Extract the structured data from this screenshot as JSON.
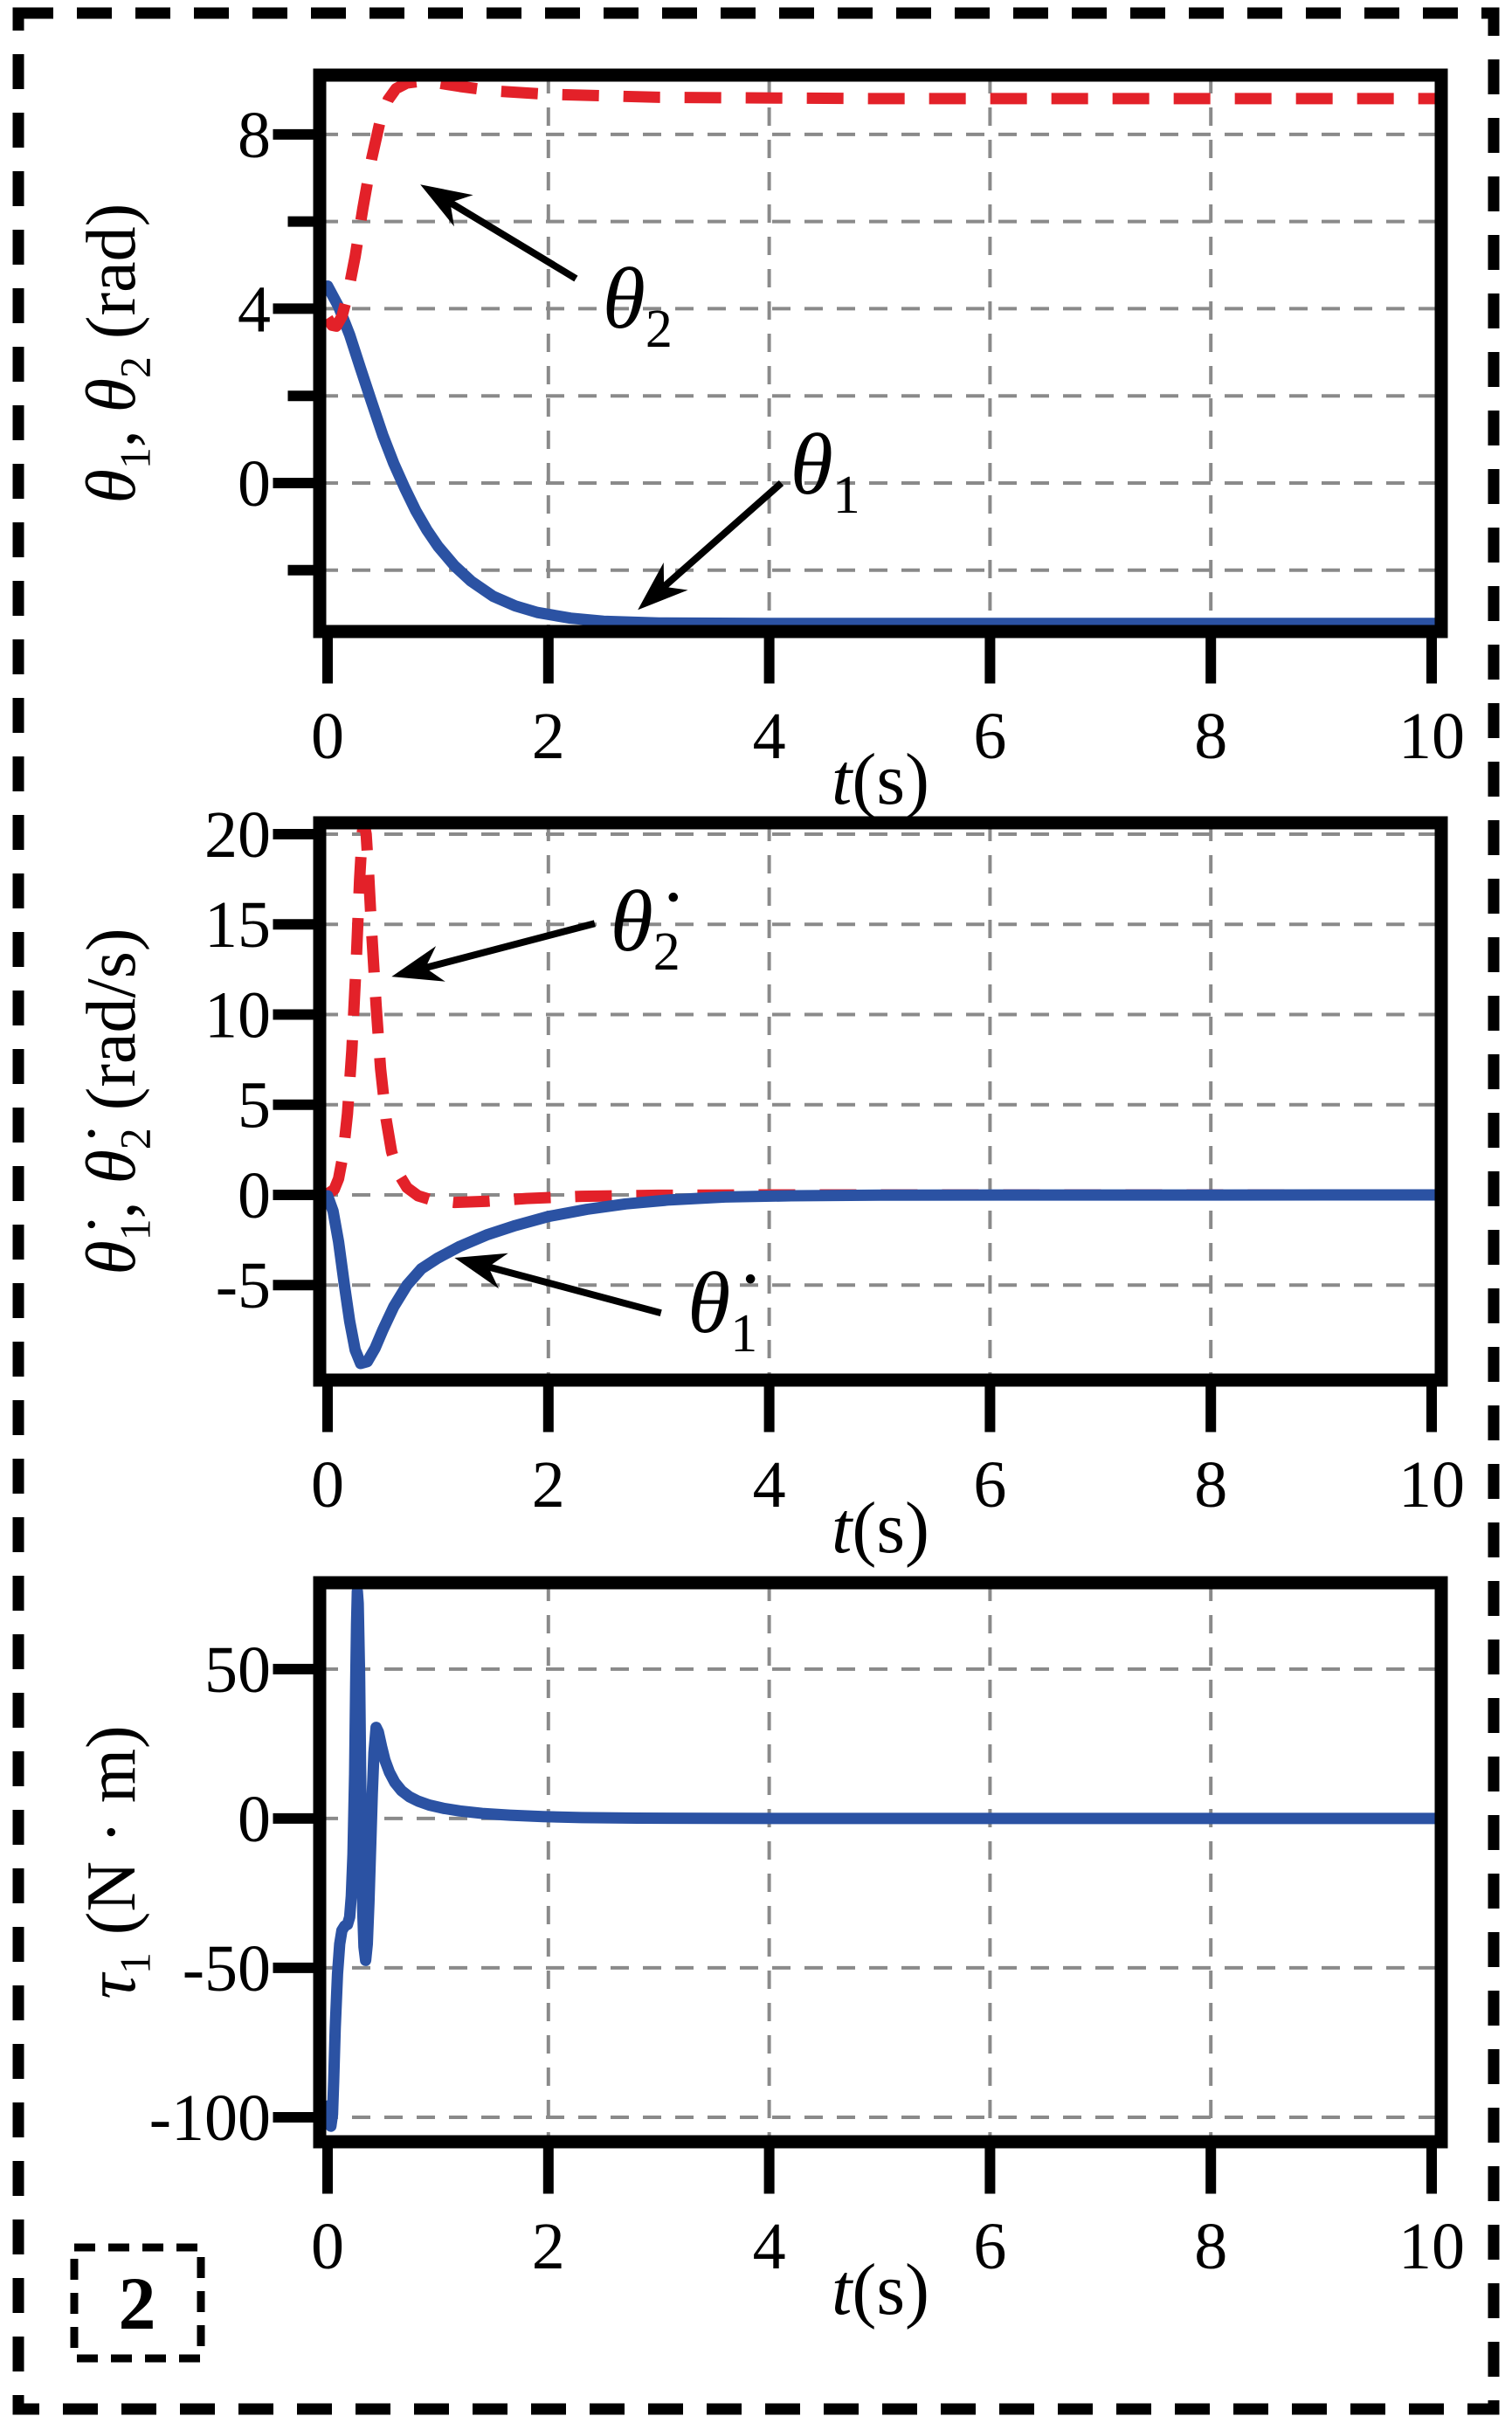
{
  "figure": {
    "number": "2",
    "number_color": "#9e2b26"
  },
  "colors": {
    "blue": "#2b52a3",
    "red": "#e32129",
    "grid": "#8a8a8a",
    "frame": "#000000",
    "background": "#ffffff"
  },
  "chart_data": [
    {
      "type": "line",
      "title": "",
      "xlabel_runs": [
        {
          "text": "t",
          "italic": true
        },
        {
          "text": "(s)"
        }
      ],
      "ylabel_runs": [
        {
          "text": "θ",
          "italic": true
        },
        {
          "text": "1",
          "sub": true
        },
        {
          "text": ", "
        },
        {
          "text": "θ",
          "italic": true
        },
        {
          "text": "2",
          "sub": true
        },
        {
          "text": " (rad)"
        }
      ],
      "xlim": [
        -0.0712,
        10.087
      ],
      "ylim": [
        -3.407,
        9.36
      ],
      "x_ticks": {
        "values": [
          0,
          2,
          4,
          6,
          8,
          10
        ],
        "labels": [
          "0",
          "2",
          "4",
          "6",
          "8",
          "10"
        ]
      },
      "y_ticks": {
        "major": [
          8,
          4,
          0
        ],
        "major_labels": [
          "8",
          "4",
          "0"
        ],
        "minor": [
          6,
          2,
          -2
        ]
      },
      "grid_x": [
        2,
        4,
        6,
        8
      ],
      "grid_y": [
        8,
        6,
        4,
        2,
        0,
        -2
      ],
      "grid_on": true,
      "legend": "none",
      "series": [
        {
          "name": "theta_1",
          "color_key": "blue",
          "style": "solid",
          "points": [
            [
              0,
              4.52
            ],
            [
              0.1,
              4.05
            ],
            [
              0.2,
              3.4
            ],
            [
              0.3,
              2.62
            ],
            [
              0.4,
              1.85
            ],
            [
              0.5,
              1.1
            ],
            [
              0.6,
              0.45
            ],
            [
              0.7,
              -0.12
            ],
            [
              0.8,
              -0.64
            ],
            [
              0.9,
              -1.08
            ],
            [
              1.0,
              -1.45
            ],
            [
              1.15,
              -1.9
            ],
            [
              1.3,
              -2.25
            ],
            [
              1.5,
              -2.6
            ],
            [
              1.7,
              -2.82
            ],
            [
              1.9,
              -2.97
            ],
            [
              2.2,
              -3.1
            ],
            [
              2.5,
              -3.17
            ],
            [
              3.0,
              -3.21
            ],
            [
              4.0,
              -3.22
            ],
            [
              10.05,
              -3.22
            ]
          ]
        },
        {
          "name": "theta_2",
          "color_key": "red",
          "style": "dashed",
          "points": [
            [
              0,
              3.78
            ],
            [
              0.04,
              3.62
            ],
            [
              0.08,
              3.6
            ],
            [
              0.13,
              3.82
            ],
            [
              0.18,
              4.3
            ],
            [
              0.25,
              5.2
            ],
            [
              0.32,
              6.3
            ],
            [
              0.4,
              7.45
            ],
            [
              0.48,
              8.35
            ],
            [
              0.55,
              8.8
            ],
            [
              0.62,
              9.05
            ],
            [
              0.72,
              9.18
            ],
            [
              0.85,
              9.22
            ],
            [
              1.0,
              9.18
            ],
            [
              1.2,
              9.1
            ],
            [
              1.5,
              9.0
            ],
            [
              2.0,
              8.92
            ],
            [
              3.0,
              8.85
            ],
            [
              5.0,
              8.82
            ],
            [
              10.05,
              8.82
            ]
          ]
        }
      ],
      "annotations": [
        {
          "id": "theta2-label",
          "runs": [
            {
              "text": "θ",
              "italic": true
            },
            {
              "text": "2",
              "sub": true
            }
          ],
          "at": [
            2.49,
            3.57
          ],
          "arrow": {
            "from": [
              2.25,
              4.69
            ],
            "to": [
              0.84,
              6.85
            ]
          }
        },
        {
          "id": "theta1-label",
          "runs": [
            {
              "text": "θ",
              "italic": true
            },
            {
              "text": "1",
              "sub": true
            }
          ],
          "at": [
            4.19,
            -0.24
          ],
          "arrow": {
            "from": [
              4.11,
              0.0
            ],
            "to": [
              2.81,
              -2.91
            ]
          }
        }
      ]
    },
    {
      "type": "line",
      "title": "",
      "xlabel_runs": [
        {
          "text": "t",
          "italic": true
        },
        {
          "text": "(s)"
        }
      ],
      "ylabel_runs": [
        {
          "text": "θ̇",
          "italic": true
        },
        {
          "text": "1",
          "sub": true
        },
        {
          "text": ", "
        },
        {
          "text": "θ̇",
          "italic": true
        },
        {
          "text": "2",
          "sub": true
        },
        {
          "text": " (rad/s)"
        }
      ],
      "xlim": [
        -0.0712,
        10.087
      ],
      "ylim": [
        -10.27,
        20.63
      ],
      "x_ticks": {
        "values": [
          0,
          2,
          4,
          6,
          8,
          10
        ],
        "labels": [
          "0",
          "2",
          "4",
          "6",
          "8",
          "10"
        ]
      },
      "y_ticks": {
        "major": [
          20,
          15,
          10,
          5,
          0,
          -5
        ],
        "major_labels": [
          "20",
          "15",
          "10",
          "5",
          "0",
          "-5"
        ],
        "minor": []
      },
      "grid_x": [
        2,
        4,
        6,
        8
      ],
      "grid_y": [
        20,
        15,
        10,
        5,
        0,
        -5
      ],
      "grid_on": true,
      "legend": "none",
      "series": [
        {
          "name": "theta_dot_2",
          "color_key": "red",
          "style": "dashed",
          "points": [
            [
              0,
              0.05
            ],
            [
              0.06,
              0.3
            ],
            [
              0.1,
              0.9
            ],
            [
              0.14,
              2.2
            ],
            [
              0.18,
              4.5
            ],
            [
              0.22,
              8.0
            ],
            [
              0.26,
              13.0
            ],
            [
              0.29,
              17.5
            ],
            [
              0.315,
              20.1
            ],
            [
              0.33,
              20.6
            ],
            [
              0.35,
              20.0
            ],
            [
              0.37,
              18.0
            ],
            [
              0.4,
              14.5
            ],
            [
              0.44,
              10.5
            ],
            [
              0.48,
              7.0
            ],
            [
              0.53,
              4.2
            ],
            [
              0.58,
              2.4
            ],
            [
              0.64,
              1.2
            ],
            [
              0.72,
              0.4
            ],
            [
              0.82,
              -0.05
            ],
            [
              0.95,
              -0.3
            ],
            [
              1.15,
              -0.42
            ],
            [
              1.45,
              -0.35
            ],
            [
              1.8,
              -0.2
            ],
            [
              2.3,
              -0.08
            ],
            [
              3.0,
              -0.02
            ],
            [
              4.0,
              0
            ],
            [
              10.05,
              0
            ]
          ]
        },
        {
          "name": "theta_dot_1",
          "color_key": "blue",
          "style": "solid",
          "points": [
            [
              0,
              -0.05
            ],
            [
              0.05,
              -0.9
            ],
            [
              0.1,
              -2.6
            ],
            [
              0.15,
              -4.9
            ],
            [
              0.2,
              -7.0
            ],
            [
              0.25,
              -8.6
            ],
            [
              0.3,
              -9.35
            ],
            [
              0.36,
              -9.25
            ],
            [
              0.43,
              -8.5
            ],
            [
              0.5,
              -7.5
            ],
            [
              0.6,
              -6.2
            ],
            [
              0.72,
              -5.0
            ],
            [
              0.85,
              -4.1
            ],
            [
              1.0,
              -3.5
            ],
            [
              1.2,
              -2.85
            ],
            [
              1.45,
              -2.2
            ],
            [
              1.7,
              -1.7
            ],
            [
              2.0,
              -1.2
            ],
            [
              2.35,
              -0.8
            ],
            [
              2.7,
              -0.5
            ],
            [
              3.1,
              -0.28
            ],
            [
              3.6,
              -0.12
            ],
            [
              4.2,
              -0.05
            ],
            [
              5.0,
              -0.01
            ],
            [
              10.05,
              0
            ]
          ]
        }
      ],
      "annotations": [
        {
          "id": "theta-dot-2-label",
          "runs": [
            {
              "text": "θ̇",
              "italic": true
            },
            {
              "text": "2",
              "sub": true
            }
          ],
          "at": [
            2.56,
            13.55
          ],
          "arrow": {
            "from": [
              2.42,
              15.05
            ],
            "to": [
              0.58,
              12.1
            ]
          }
        },
        {
          "id": "theta-dot-1-label",
          "runs": [
            {
              "text": "θ̇",
              "italic": true
            },
            {
              "text": "1",
              "sub": true
            }
          ],
          "at": [
            3.26,
            -7.6
          ],
          "arrow": {
            "from": [
              3.02,
              -6.55
            ],
            "to": [
              1.15,
              -3.49
            ]
          }
        }
      ]
    },
    {
      "type": "line",
      "title": "",
      "xlabel_runs": [
        {
          "text": "t",
          "italic": true
        },
        {
          "text": "(s)"
        }
      ],
      "ylabel_runs": [
        {
          "text": "τ",
          "italic": true
        },
        {
          "text": "1",
          "sub": true
        },
        {
          "text": " (N · m)"
        }
      ],
      "xlim": [
        -0.0712,
        10.087
      ],
      "ylim": [
        -108.2,
        78.9
      ],
      "x_ticks": {
        "values": [
          0,
          2,
          4,
          6,
          8,
          10
        ],
        "labels": [
          "0",
          "2",
          "4",
          "6",
          "8",
          "10"
        ]
      },
      "y_ticks": {
        "major": [
          50,
          0,
          -50,
          -100
        ],
        "major_labels": [
          "50",
          "0",
          "-50",
          "-100"
        ],
        "minor": []
      },
      "grid_x": [
        2,
        4,
        6,
        8
      ],
      "grid_y": [
        50,
        0,
        -50,
        -100
      ],
      "grid_on": true,
      "legend": "none",
      "series": [
        {
          "name": "tau_1",
          "color_key": "blue",
          "style": "solid",
          "points": [
            [
              0.02,
              -96
            ],
            [
              0.03,
              -103
            ],
            [
              0.045,
              -99
            ],
            [
              0.055,
              -88
            ],
            [
              0.07,
              -70
            ],
            [
              0.09,
              -52
            ],
            [
              0.11,
              -42
            ],
            [
              0.13,
              -37.5
            ],
            [
              0.155,
              -36
            ],
            [
              0.18,
              -35.5
            ],
            [
              0.2,
              -33
            ],
            [
              0.215,
              -26
            ],
            [
              0.23,
              -12
            ],
            [
              0.245,
              15
            ],
            [
              0.255,
              45
            ],
            [
              0.263,
              65
            ],
            [
              0.27,
              76
            ],
            [
              0.278,
              72
            ],
            [
              0.29,
              48
            ],
            [
              0.3,
              15
            ],
            [
              0.31,
              -12
            ],
            [
              0.32,
              -32
            ],
            [
              0.33,
              -43
            ],
            [
              0.345,
              -47.5
            ],
            [
              0.36,
              -42
            ],
            [
              0.375,
              -28
            ],
            [
              0.39,
              -10
            ],
            [
              0.405,
              8
            ],
            [
              0.42,
              22
            ],
            [
              0.44,
              30.5
            ],
            [
              0.46,
              29
            ],
            [
              0.49,
              24
            ],
            [
              0.52,
              19.5
            ],
            [
              0.56,
              15.5
            ],
            [
              0.61,
              12
            ],
            [
              0.67,
              9.3
            ],
            [
              0.74,
              7.3
            ],
            [
              0.82,
              5.8
            ],
            [
              0.92,
              4.5
            ],
            [
              1.05,
              3.4
            ],
            [
              1.2,
              2.5
            ],
            [
              1.4,
              1.7
            ],
            [
              1.65,
              1.1
            ],
            [
              1.95,
              0.6
            ],
            [
              2.3,
              0.3
            ],
            [
              2.8,
              0.12
            ],
            [
              3.5,
              0.04
            ],
            [
              4.5,
              0.01
            ],
            [
              10.05,
              0
            ]
          ]
        }
      ],
      "annotations": []
    }
  ]
}
